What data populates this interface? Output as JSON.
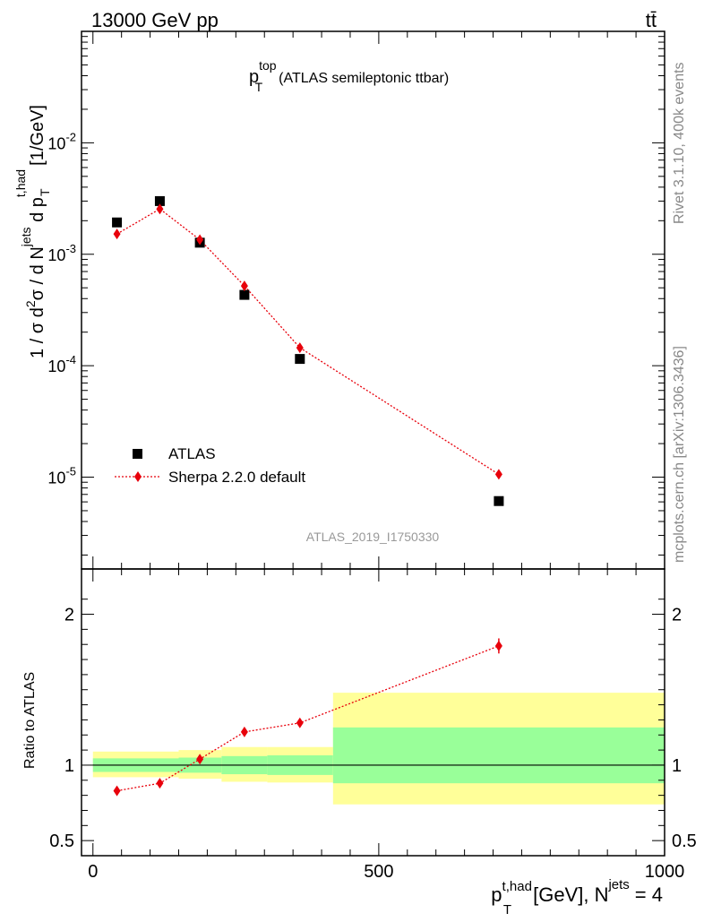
{
  "header": {
    "energy_label": "13000 GeV pp",
    "process_label": "tt̄"
  },
  "side_labels": {
    "rivet": "Rivet 3.1.10,  400k events",
    "mcplots": "mcplots.cern.ch [arXiv:1306.3436]"
  },
  "chart_data": [
    {
      "type": "scatter",
      "panel": "main",
      "title_main": "p",
      "title_sup": "top",
      "title_sub": "T",
      "title_rest": "(ATLAS semileptonic ttbar)",
      "ylabel": "1 / σ d²σ / d N^jets d p_T^t,had [1/GeV]",
      "yscale": "log",
      "ylim": [
        1.5e-06,
        0.1
      ],
      "xlim": [
        -20,
        1000
      ],
      "y_tick_labels": [
        {
          "base": "10",
          "exp": "-5"
        },
        {
          "base": "10",
          "exp": "-4"
        },
        {
          "base": "10",
          "exp": "-3"
        },
        {
          "base": "10",
          "exp": "-2"
        }
      ],
      "analysis_id": "ATLAS_2019_I1750330",
      "legend": {
        "position": "bottom-left",
        "entries": [
          "ATLAS",
          "Sherpa 2.2.0 default"
        ]
      },
      "series": [
        {
          "name": "ATLAS",
          "marker": "square",
          "color": "#000000",
          "x": [
            42,
            117,
            187,
            265,
            362,
            710
          ],
          "y": [
            0.00193,
            0.003,
            0.00127,
            0.000432,
            0.000115,
            6.1e-06
          ]
        },
        {
          "name": "Sherpa 2.2.0 default",
          "marker": "diamond",
          "color": "#e8000b",
          "x": [
            42,
            117,
            187,
            265,
            362,
            710
          ],
          "y": [
            0.00152,
            0.00255,
            0.00135,
            0.00052,
            0.000145,
            1.06e-05
          ]
        }
      ]
    },
    {
      "type": "scatter",
      "panel": "ratio",
      "ylabel": "Ratio to ATLAS",
      "xlabel_main": "p",
      "xlabel_sup": "t,had",
      "xlabel_sub": "T",
      "xlabel_rest": "[GeV], N",
      "xlabel_sup2": "jets",
      "xlabel_end": "= 4",
      "xlim": [
        -20,
        1000
      ],
      "ylim": [
        0.4,
        2.3
      ],
      "y_ticks": [
        0.5,
        1,
        2
      ],
      "y_tick_labels": [
        "0.5",
        "1",
        "2"
      ],
      "x_ticks": [
        0,
        500,
        1000
      ],
      "x_tick_labels": [
        "0",
        "500",
        "1000"
      ],
      "bands": [
        {
          "x0": 0,
          "x1": 150,
          "stat_lo": 0.955,
          "stat_hi": 1.045,
          "tot_lo": 0.92,
          "tot_hi": 1.09
        },
        {
          "x0": 150,
          "x1": 225,
          "stat_lo": 0.95,
          "stat_hi": 1.05,
          "tot_lo": 0.91,
          "tot_hi": 1.1
        },
        {
          "x0": 225,
          "x1": 305,
          "stat_lo": 0.94,
          "stat_hi": 1.06,
          "tot_lo": 0.89,
          "tot_hi": 1.12
        },
        {
          "x0": 305,
          "x1": 420,
          "stat_lo": 0.935,
          "stat_hi": 1.065,
          "tot_lo": 0.885,
          "tot_hi": 1.12
        },
        {
          "x0": 420,
          "x1": 1000,
          "stat_lo": 0.88,
          "stat_hi": 1.25,
          "tot_lo": 0.74,
          "tot_hi": 1.48
        }
      ],
      "series": [
        {
          "name": "Sherpa 2.2.0 default",
          "color": "#e8000b",
          "x": [
            42,
            117,
            187,
            265,
            362,
            710
          ],
          "y": [
            0.83,
            0.88,
            1.04,
            1.22,
            1.28,
            1.79
          ],
          "err": [
            0.01,
            0.01,
            0.01,
            0.015,
            0.02,
            0.05
          ]
        }
      ]
    }
  ]
}
